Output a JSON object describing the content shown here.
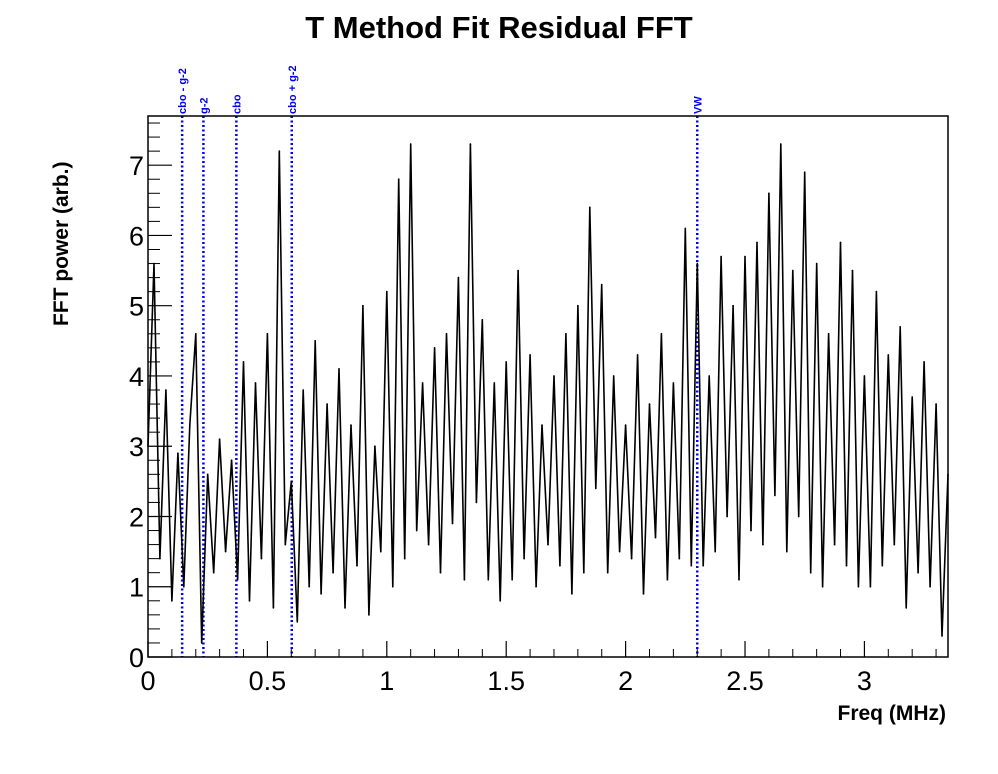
{
  "chart_data": {
    "type": "line",
    "title": "T Method Fit Residual FFT",
    "xlabel": "Freq (MHz)",
    "ylabel": "FFT power (arb.)",
    "xlim": [
      0,
      3.35
    ],
    "ylim": [
      0,
      7.7
    ],
    "x_ticks": [
      0,
      0.5,
      1,
      1.5,
      2,
      2.5,
      3
    ],
    "x_tick_labels": [
      "0",
      "0.5",
      "1",
      "1.5",
      "2",
      "2.5",
      "3"
    ],
    "y_ticks": [
      0,
      1,
      2,
      3,
      4,
      5,
      6,
      7
    ],
    "y_tick_labels": [
      "0",
      "1",
      "2",
      "3",
      "4",
      "5",
      "6",
      "7"
    ],
    "grid": false,
    "line_color": "#000000",
    "marker_color": "#0000ee",
    "markers": [
      {
        "label": "cbo - g-2",
        "x": 0.143
      },
      {
        "label": "g-2",
        "x": 0.232
      },
      {
        "label": "cbo",
        "x": 0.37
      },
      {
        "label": "cbo + g-2",
        "x": 0.602
      },
      {
        "label": "VW",
        "x": 2.3
      }
    ],
    "series": [
      {
        "x": [
          0.0,
          0.025,
          0.05,
          0.075,
          0.1,
          0.125,
          0.15,
          0.175,
          0.2,
          0.225,
          0.25,
          0.275,
          0.3,
          0.325,
          0.35,
          0.375,
          0.4,
          0.425,
          0.45,
          0.475,
          0.5,
          0.525,
          0.55,
          0.575,
          0.6,
          0.625,
          0.65,
          0.675,
          0.7,
          0.725,
          0.75,
          0.775,
          0.8,
          0.825,
          0.85,
          0.875,
          0.9,
          0.925,
          0.95,
          0.975,
          1.0,
          1.025,
          1.05,
          1.075,
          1.1,
          1.125,
          1.15,
          1.175,
          1.2,
          1.225,
          1.25,
          1.275,
          1.3,
          1.325,
          1.35,
          1.375,
          1.4,
          1.425,
          1.45,
          1.475,
          1.5,
          1.525,
          1.55,
          1.575,
          1.6,
          1.625,
          1.65,
          1.675,
          1.7,
          1.725,
          1.75,
          1.775,
          1.8,
          1.825,
          1.85,
          1.875,
          1.9,
          1.925,
          1.95,
          1.975,
          2.0,
          2.025,
          2.05,
          2.075,
          2.1,
          2.125,
          2.15,
          2.175,
          2.2,
          2.225,
          2.25,
          2.275,
          2.3,
          2.325,
          2.35,
          2.375,
          2.4,
          2.425,
          2.45,
          2.475,
          2.5,
          2.525,
          2.55,
          2.575,
          2.6,
          2.625,
          2.65,
          2.675,
          2.7,
          2.725,
          2.75,
          2.775,
          2.8,
          2.825,
          2.85,
          2.875,
          2.9,
          2.925,
          2.95,
          2.975,
          3.0,
          3.025,
          3.05,
          3.075,
          3.1,
          3.125,
          3.15,
          3.175,
          3.2,
          3.225,
          3.25,
          3.275,
          3.3,
          3.325,
          3.35
        ],
        "values": [
          3.0,
          5.6,
          1.4,
          3.8,
          0.8,
          2.9,
          1.0,
          3.3,
          4.6,
          0.2,
          2.6,
          1.2,
          3.1,
          1.5,
          2.8,
          1.1,
          4.2,
          0.8,
          3.9,
          1.4,
          4.6,
          0.7,
          7.2,
          1.6,
          2.5,
          0.5,
          3.8,
          1.0,
          4.5,
          0.9,
          3.6,
          1.2,
          4.1,
          0.7,
          3.3,
          1.3,
          5.0,
          0.6,
          3.0,
          1.5,
          5.2,
          1.0,
          6.8,
          1.4,
          7.3,
          1.8,
          3.9,
          1.6,
          4.4,
          1.2,
          4.6,
          1.9,
          5.4,
          1.1,
          7.3,
          2.2,
          4.8,
          1.1,
          3.9,
          0.8,
          4.2,
          1.1,
          5.5,
          1.4,
          4.3,
          1.0,
          3.3,
          1.6,
          4.0,
          1.3,
          4.6,
          0.9,
          5.0,
          1.2,
          6.4,
          2.4,
          5.3,
          1.2,
          4.0,
          1.5,
          3.3,
          1.4,
          4.3,
          0.9,
          3.6,
          1.7,
          4.6,
          1.1,
          3.9,
          1.4,
          6.1,
          1.3,
          5.6,
          1.3,
          4.0,
          1.5,
          5.7,
          2.0,
          5.0,
          1.1,
          5.7,
          1.8,
          5.9,
          1.6,
          6.6,
          2.3,
          7.3,
          1.5,
          5.5,
          2.0,
          6.9,
          1.2,
          5.6,
          1.0,
          4.6,
          1.6,
          5.9,
          1.3,
          5.5,
          1.0,
          4.0,
          1.0,
          5.2,
          1.3,
          4.3,
          1.6,
          4.7,
          0.7,
          3.7,
          1.2,
          4.2,
          1.0,
          3.6,
          0.3,
          2.6
        ]
      }
    ]
  }
}
